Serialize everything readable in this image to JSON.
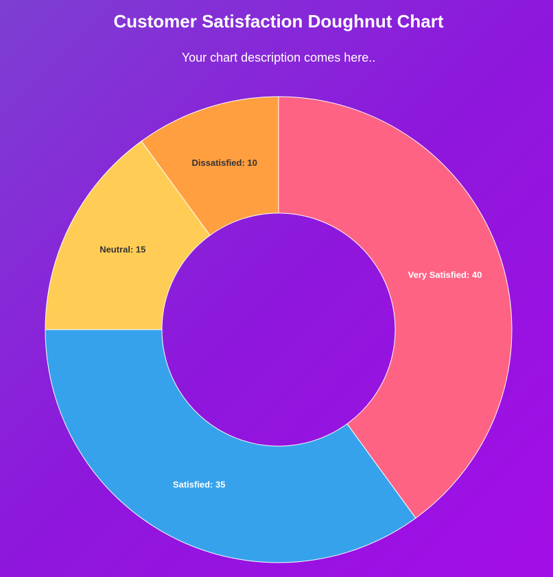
{
  "chart_data": {
    "type": "doughnut",
    "title": "Customer Satisfaction Doughnut Chart",
    "subtitle": "Your chart description comes here..",
    "values": [
      40,
      35,
      15,
      10
    ],
    "value_labels": [
      "Very Satisfied: 40",
      "Satisfied: 35",
      "Neutral: 15",
      "Dissatisfied: 10"
    ],
    "colors": [
      "#ff6384",
      "#36a2eb",
      "#ffcd56",
      "#ff9f40"
    ],
    "label_colors": [
      "#ffffff",
      "#ffffff",
      "#333333",
      "#333333"
    ]
  }
}
